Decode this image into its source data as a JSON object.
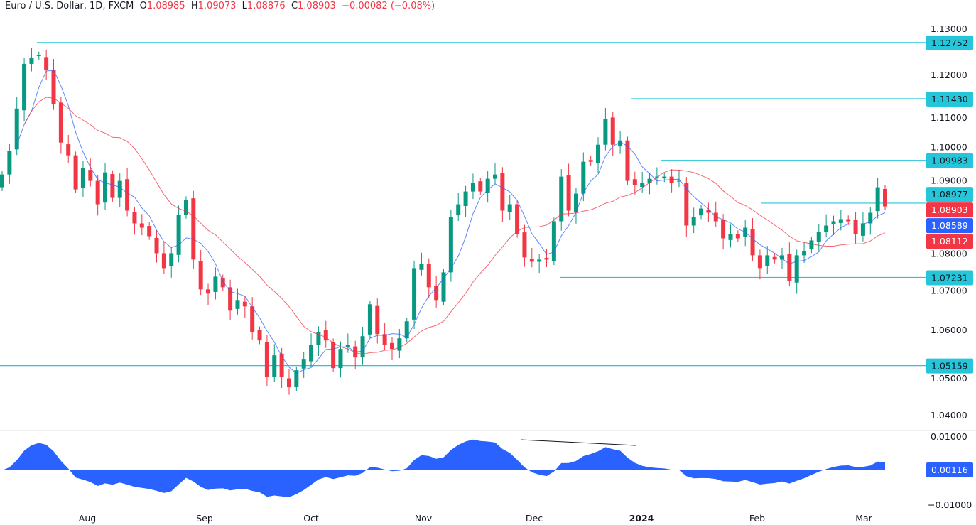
{
  "header": {
    "symbol": "Euro / U.S. Dollar, 1D, FXCM",
    "open_label": "O",
    "open": "1.08985",
    "high_label": "H",
    "high": "1.09073",
    "low_label": "L",
    "low": "1.08876",
    "close_label": "C",
    "close": "1.08903",
    "change": "−0.00082 (−0.08%)"
  },
  "colors": {
    "up": "#089981",
    "down": "#f23645",
    "level": "#26c6da",
    "ma_fast": "#2962ff",
    "ma_slow": "#f23645",
    "oscillator": "#2962ff"
  },
  "chart_data": [
    {
      "type": "candlestick",
      "ylim": [
        1.037,
        1.134
      ],
      "y_ticks": [
        "1.13000",
        "1.12000",
        "1.11000",
        "1.10000",
        "1.09000",
        "1.08000",
        "1.07000",
        "1.06000",
        "1.05000",
        "1.04000"
      ],
      "x_ticks": [
        "Aug",
        "Sep",
        "Oct",
        "Nov",
        "Dec",
        "2024",
        "Feb",
        "Mar"
      ],
      "closes": [
        1.0965,
        1.102,
        1.112,
        1.1225,
        1.124,
        1.1245,
        1.121,
        1.113,
        1.104,
        1.101,
        1.093,
        1.098,
        1.095,
        1.0895,
        1.097,
        1.091,
        1.095,
        1.088,
        1.085,
        1.084,
        1.082,
        1.078,
        1.0745,
        1.078,
        1.087,
        1.0905,
        1.0765,
        1.0695,
        1.0685,
        1.0725,
        1.07,
        1.0645,
        1.067,
        1.0655,
        1.0595,
        1.0575,
        1.049,
        1.054,
        1.049,
        1.0465,
        1.0505,
        1.053,
        1.0565,
        1.0595,
        1.0575,
        1.051,
        1.0555,
        1.0565,
        1.0535,
        1.0585,
        1.066,
        1.059,
        1.0565,
        1.0555,
        1.058,
        1.062,
        1.0745,
        1.0755,
        1.07,
        1.067,
        1.0735,
        1.0865,
        1.0895,
        1.0925,
        1.0945,
        1.0925,
        1.0955,
        1.0965,
        1.088,
        1.0895,
        1.0825,
        1.077,
        1.076,
        1.0765,
        1.0765,
        1.0855,
        1.096,
        1.088,
        1.092,
        1.0995,
        1.0995,
        1.1035,
        1.1095,
        1.1035,
        1.1045,
        1.095,
        1.094,
        1.0945,
        1.0955,
        1.096,
        1.096,
        1.0945,
        1.095,
        1.0845,
        1.0865,
        1.0885,
        1.0875,
        1.0855,
        1.0815,
        1.0825,
        1.0815,
        1.084,
        1.0775,
        1.0745,
        1.0775,
        1.0765,
        1.0775,
        1.0715,
        1.0775,
        1.0785,
        1.081,
        1.083,
        1.0845,
        1.0855,
        1.086,
        1.0855,
        1.0825,
        1.085,
        1.0875,
        1.0935,
        1.089
      ],
      "levels": [
        {
          "label": "1.12752",
          "value": 1.12752
        },
        {
          "label": "1.11430",
          "value": 1.1143
        },
        {
          "label": "1.09983",
          "value": 1.09983
        },
        {
          "label": "1.08977",
          "value": 1.08977
        },
        {
          "label": "1.07231",
          "value": 1.07231
        },
        {
          "label": "1.05159",
          "value": 1.05159
        }
      ],
      "price_badges": [
        {
          "label": "1.08903",
          "value": 1.08903,
          "color": "#f23645"
        },
        {
          "label": "1.08589",
          "value": 1.08589,
          "color": "#2962ff"
        },
        {
          "label": "1.08112",
          "value": 1.08112,
          "color": "#f23645"
        }
      ]
    },
    {
      "type": "area",
      "y_ticks": [
        "0.01000",
        "−0.01000"
      ],
      "ylim": [
        -0.0113,
        0.0113
      ],
      "current": "0.00116"
    }
  ]
}
